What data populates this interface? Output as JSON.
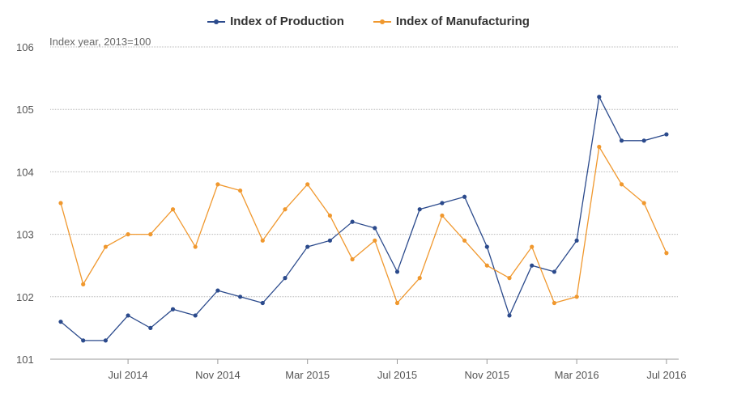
{
  "chart_data": {
    "type": "line",
    "subtitle": "Index year, 2013=100",
    "x": [
      "2014-04",
      "2014-05",
      "2014-06",
      "2014-07",
      "2014-08",
      "2014-09",
      "2014-10",
      "2014-11",
      "2014-12",
      "2015-01",
      "2015-02",
      "2015-03",
      "2015-04",
      "2015-05",
      "2015-06",
      "2015-07",
      "2015-08",
      "2015-09",
      "2015-10",
      "2015-11",
      "2015-12",
      "2016-01",
      "2016-02",
      "2016-03",
      "2016-04",
      "2016-05",
      "2016-06",
      "2016-07"
    ],
    "x_tick_labels": [
      "Jul 2014",
      "Nov 2014",
      "Mar 2015",
      "Jul 2015",
      "Nov 2015",
      "Mar 2016",
      "Jul 2016"
    ],
    "y_ticks": [
      "101",
      "102",
      "103",
      "104",
      "105",
      "106"
    ],
    "ylim": [
      101,
      106
    ],
    "grid": true,
    "legend_position": "top-center",
    "series": [
      {
        "name": "Index of Production",
        "color": "#2b4a8c",
        "values": [
          101.6,
          101.3,
          101.3,
          101.7,
          101.5,
          101.8,
          101.7,
          102.1,
          102.0,
          101.9,
          102.3,
          102.8,
          102.9,
          103.2,
          103.1,
          102.4,
          103.4,
          103.5,
          103.6,
          102.8,
          101.7,
          102.5,
          102.4,
          102.9,
          105.2,
          104.5,
          104.5,
          104.6
        ]
      },
      {
        "name": "Index of Manufacturing",
        "color": "#f0982e",
        "values": [
          103.5,
          102.2,
          102.8,
          103.0,
          103.0,
          103.4,
          102.8,
          103.8,
          103.7,
          102.9,
          103.4,
          103.8,
          103.3,
          102.6,
          102.9,
          101.9,
          102.3,
          103.3,
          102.9,
          102.5,
          102.3,
          102.8,
          101.9,
          102.0,
          104.4,
          103.8,
          103.5,
          102.7
        ]
      }
    ]
  }
}
